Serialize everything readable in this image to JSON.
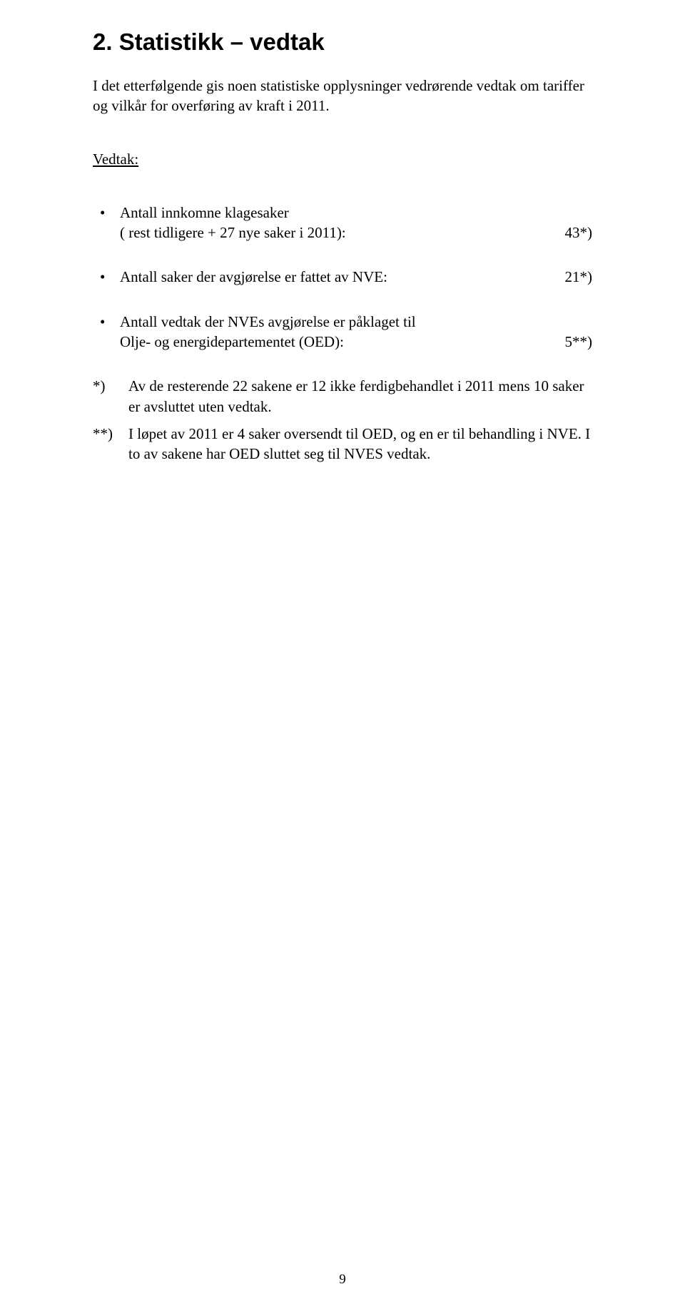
{
  "heading": "2. Statistikk – vedtak",
  "intro": "I det etterfølgende gis noen statistiske opplysninger vedrørende vedtak om tariffer og vilkår for overføring av kraft i 2011.",
  "vedtak_label": "Vedtak:",
  "bullets": [
    {
      "text_line1": "Antall innkomne klagesaker",
      "text_line2": "( rest tidligere + 27 nye saker i 2011):",
      "value": "43*)"
    },
    {
      "text_line1": "Antall saker der avgjørelse er fattet av NVE:",
      "text_line2": "",
      "value": "21*)"
    },
    {
      "text_line1": "Antall vedtak der NVEs avgjørelse er påklaget til",
      "text_line2": "Olje- og energidepartementet (OED):",
      "value": "5**)"
    }
  ],
  "notes": [
    {
      "mark": "*)",
      "text": "Av de resterende 22 sakene er 12 ikke ferdigbehandlet i 2011 mens 10 saker er avsluttet uten vedtak."
    },
    {
      "mark": "**)",
      "text": "I løpet av 2011 er 4 saker oversendt til OED, og en er til behandling i NVE. I to av sakene har OED sluttet seg til NVES vedtak."
    }
  ],
  "page_number": "9",
  "colors": {
    "background": "#ffffff",
    "text": "#000000"
  },
  "fonts": {
    "heading_family": "Arial",
    "heading_size_pt": 22,
    "heading_weight": 700,
    "body_family": "Times New Roman",
    "body_size_pt": 14
  }
}
